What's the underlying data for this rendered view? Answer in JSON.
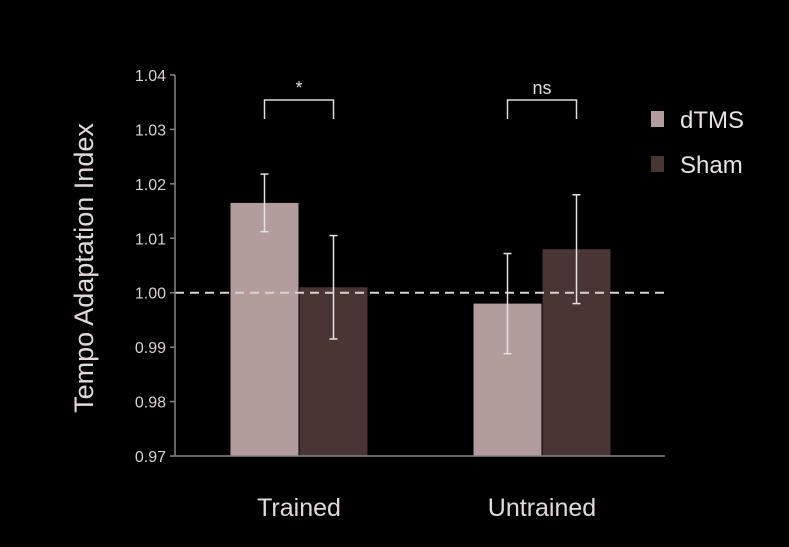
{
  "chart_data": {
    "type": "bar",
    "title": "",
    "xlabel": "",
    "ylabel": "Tempo Adaptation Index",
    "ylim": [
      0.97,
      1.04
    ],
    "yticks": [
      "0.97",
      "0.98",
      "0.99",
      "1.00",
      "1.01",
      "1.02",
      "1.03",
      "1.04"
    ],
    "categories": [
      "Trained",
      "Untrained"
    ],
    "series": [
      {
        "name": "dTMS",
        "color": "#b29d9c",
        "values": [
          1.0165,
          0.998
        ],
        "error": [
          0.0053,
          0.0092
        ]
      },
      {
        "name": "Sham",
        "color": "#4a3535",
        "values": [
          1.001,
          1.008
        ],
        "error": [
          0.0095,
          0.01
        ]
      }
    ],
    "reference_line": {
      "value": 1.0,
      "style": "dashed",
      "color": "#d8d2d2"
    },
    "significance": [
      {
        "category": "Trained",
        "label": "*"
      },
      {
        "category": "Untrained",
        "label": "ns"
      }
    ],
    "legend_position": "right",
    "grid": false,
    "axis_color": "#8a8282"
  }
}
